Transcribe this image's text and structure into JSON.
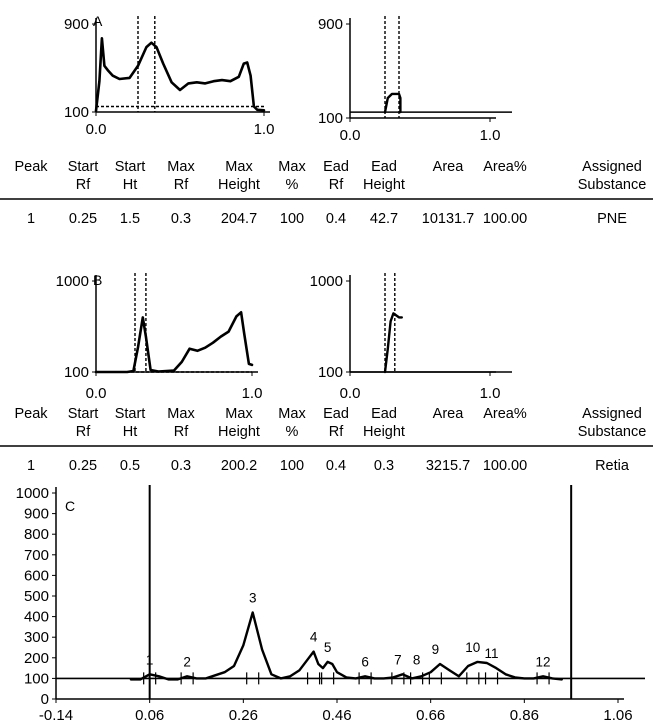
{
  "panels": [
    {
      "label": "A",
      "chart_data": [
        {
          "type": "line",
          "yticks": [
            "900",
            "100"
          ],
          "xticks": [
            "0.0",
            "1.0"
          ],
          "ylim": [
            100,
            900
          ],
          "xlim": [
            0.0,
            1.0
          ],
          "vlines": [
            0.25,
            0.35
          ],
          "baseline": 150,
          "series": [
            {
              "x": [
                0.0,
                0.02,
                0.035,
                0.05,
                0.07,
                0.1,
                0.14,
                0.2,
                0.25,
                0.3,
                0.33,
                0.36,
                0.4,
                0.45,
                0.5,
                0.55,
                0.6,
                0.65,
                0.7,
                0.75,
                0.8,
                0.85,
                0.88,
                0.9,
                0.92,
                0.94,
                0.96,
                1.0
              ],
              "y": [
                110,
                380,
                770,
                520,
                480,
                430,
                400,
                410,
                520,
                690,
                730,
                690,
                540,
                370,
                300,
                360,
                370,
                360,
                380,
                390,
                380,
                420,
                540,
                550,
                430,
                150,
                120,
                115
              ]
            }
          ]
        },
        {
          "type": "line",
          "yticks": [
            "900",
            "100"
          ],
          "xticks": [
            "0.0",
            "1.0"
          ],
          "ylim": [
            100,
            900
          ],
          "xlim": [
            0.0,
            1.0
          ],
          "vlines": [
            0.25,
            0.35
          ],
          "baseline": 150,
          "series": [
            {
              "x": [
                0.25,
                0.27,
                0.3,
                0.35,
                0.36,
                0.36
              ],
              "y": [
                150,
                270,
                305,
                305,
                270,
                150
              ]
            }
          ]
        }
      ],
      "table": {
        "headers": [
          [
            "Peak",
            ""
          ],
          [
            "Start",
            "Rf"
          ],
          [
            "Start",
            "Ht"
          ],
          [
            "Max",
            "Rf"
          ],
          [
            "Max",
            "Height"
          ],
          [
            "Max",
            "%"
          ],
          [
            "Ead",
            "Rf"
          ],
          [
            "Ead",
            "Height"
          ],
          [
            "Area",
            ""
          ],
          [
            "Area%",
            ""
          ],
          [
            "Assigned",
            "Substance"
          ]
        ],
        "rows": [
          [
            "1",
            "0.25",
            "1.5",
            "0.3",
            "204.7",
            "100",
            "0.4",
            "42.7",
            "10131.7",
            "100.00",
            "PNE"
          ]
        ]
      }
    },
    {
      "label": "B",
      "chart_data": [
        {
          "type": "line",
          "yticks": [
            "1000",
            "100"
          ],
          "xticks": [
            "0.0",
            "1.0"
          ],
          "ylim": [
            100,
            1000
          ],
          "xlim": [
            0.0,
            1.0
          ],
          "vlines": [
            0.25,
            0.32
          ],
          "baseline": 100,
          "series": [
            {
              "x": [
                0.0,
                0.2,
                0.24,
                0.27,
                0.3,
                0.32,
                0.35,
                0.4,
                0.5,
                0.55,
                0.6,
                0.65,
                0.7,
                0.75,
                0.8,
                0.85,
                0.9,
                0.93,
                0.95,
                0.98,
                1.0
              ],
              "y": [
                100,
                100,
                110,
                350,
                640,
                450,
                120,
                105,
                115,
                200,
                330,
                310,
                340,
                390,
                450,
                500,
                650,
                690,
                480,
                180,
                170
              ]
            }
          ]
        },
        {
          "type": "line",
          "yticks": [
            "1000",
            "100"
          ],
          "xticks": [
            "0.0",
            "1.0"
          ],
          "ylim": [
            100,
            1000
          ],
          "xlim": [
            0.0,
            1.0
          ],
          "vlines": [
            0.25,
            0.32
          ],
          "baseline": 100,
          "series": [
            {
              "x": [
                0.25,
                0.27,
                0.29,
                0.31,
                0.33,
                0.34,
                0.35,
                0.37
              ],
              "y": [
                100,
                330,
                600,
                680,
                660,
                650,
                640,
                640
              ]
            }
          ]
        }
      ],
      "table": {
        "headers": [
          [
            "Peak",
            ""
          ],
          [
            "Start",
            "Rf"
          ],
          [
            "Start",
            "Ht"
          ],
          [
            "Max",
            "Rf"
          ],
          [
            "Max",
            "Height"
          ],
          [
            "Max",
            "%"
          ],
          [
            "Ead",
            "Rf"
          ],
          [
            "Ead",
            "Height"
          ],
          [
            "Area",
            ""
          ],
          [
            "Area%",
            ""
          ],
          [
            "Assigned",
            "Substance"
          ]
        ],
        "rows": [
          [
            "1",
            "0.25",
            "0.5",
            "0.3",
            "200.2",
            "100",
            "0.4",
            "0.3",
            "3215.7",
            "100.00",
            "Retia"
          ]
        ]
      }
    },
    {
      "label": "C",
      "chart_data": {
        "type": "line",
        "yticks": [
          "1000",
          "900",
          "800",
          "700",
          "600",
          "500",
          "400",
          "300",
          "200",
          "100",
          "0"
        ],
        "xticks": [
          "-0.14",
          "0.06",
          "0.26",
          "0.46",
          "0.66",
          "0.86",
          "1.06"
        ],
        "ylim": [
          0,
          1000
        ],
        "xlim": [
          -0.14,
          1.06
        ],
        "vlines": [
          0.06,
          0.96
        ],
        "baseline": 100,
        "peaks": [
          {
            "label": "1",
            "x": 0.06,
            "y": 120
          },
          {
            "label": "2",
            "x": 0.14,
            "y": 110
          },
          {
            "label": "3",
            "x": 0.28,
            "y": 420
          },
          {
            "label": "4",
            "x": 0.41,
            "y": 230
          },
          {
            "label": "5",
            "x": 0.44,
            "y": 180
          },
          {
            "label": "6",
            "x": 0.52,
            "y": 110
          },
          {
            "label": "7",
            "x": 0.59,
            "y": 120
          },
          {
            "label": "8",
            "x": 0.63,
            "y": 120
          },
          {
            "label": "9",
            "x": 0.67,
            "y": 170
          },
          {
            "label": "10",
            "x": 0.75,
            "y": 180
          },
          {
            "label": "11",
            "x": 0.79,
            "y": 150
          },
          {
            "label": "12",
            "x": 0.9,
            "y": 110
          }
        ],
        "series": [
          {
            "x": [
              0.02,
              0.04,
              0.06,
              0.08,
              0.1,
              0.12,
              0.14,
              0.16,
              0.18,
              0.2,
              0.22,
              0.24,
              0.26,
              0.28,
              0.3,
              0.32,
              0.34,
              0.36,
              0.38,
              0.4,
              0.41,
              0.42,
              0.43,
              0.44,
              0.45,
              0.46,
              0.48,
              0.5,
              0.52,
              0.54,
              0.56,
              0.58,
              0.6,
              0.62,
              0.64,
              0.66,
              0.68,
              0.7,
              0.72,
              0.74,
              0.76,
              0.78,
              0.8,
              0.82,
              0.84,
              0.86,
              0.88,
              0.9,
              0.92,
              0.94
            ],
            "y": [
              95,
              95,
              120,
              110,
              95,
              95,
              110,
              100,
              100,
              115,
              130,
              160,
              260,
              420,
              240,
              120,
              100,
              110,
              140,
              200,
              230,
              170,
              150,
              180,
              170,
              130,
              105,
              100,
              110,
              100,
              100,
              105,
              120,
              100,
              110,
              130,
              170,
              140,
              110,
              160,
              180,
              175,
              150,
              120,
              105,
              100,
              100,
              110,
              100,
              95
            ]
          }
        ]
      }
    }
  ]
}
